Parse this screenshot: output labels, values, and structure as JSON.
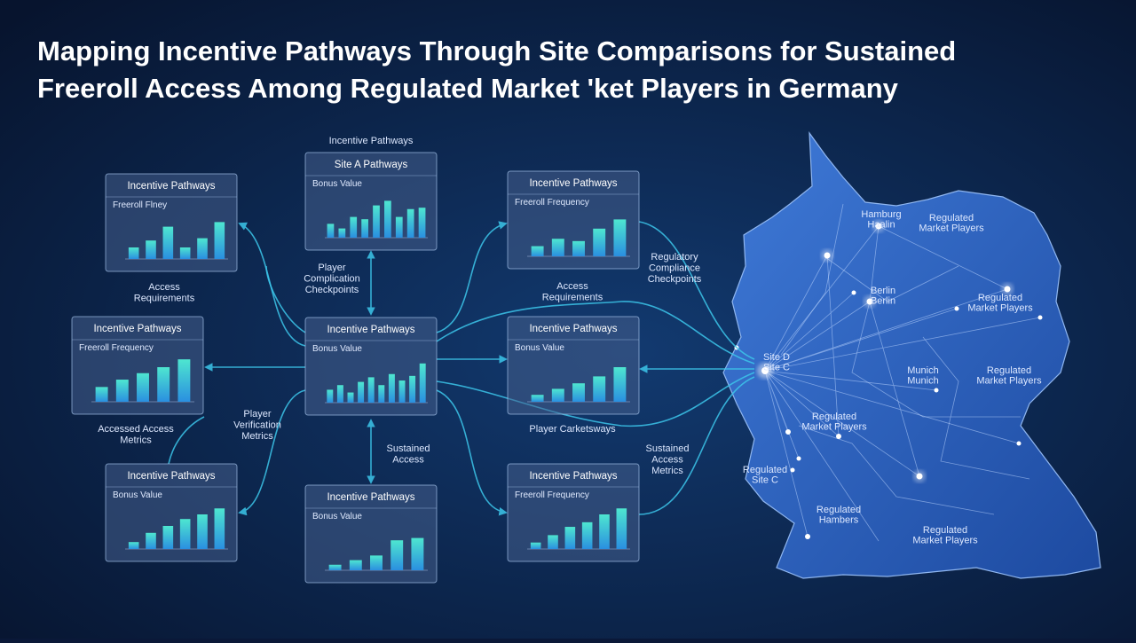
{
  "title": {
    "lines": [
      "Mapping Incentive Pathways Through Site Comparisons for Sustained",
      "Freeroll Access Among Regulated Market 'ket Players in Germany"
    ]
  },
  "panels": [
    {
      "title": "Incentive Pathways",
      "subtitle": "Freeroll Flney",
      "ylim": [
        0,
        100
      ],
      "values": [
        25,
        40,
        70,
        25,
        45,
        80
      ]
    },
    {
      "title": "Site A Pathways",
      "subtitle": "Bonus Value",
      "ylim": [
        0,
        100
      ],
      "values": [
        30,
        20,
        45,
        40,
        70,
        80,
        45,
        62,
        65
      ]
    },
    {
      "title": "Incentive Pathways",
      "subtitle": "Freeroll Frequency",
      "ylim": [
        0,
        100
      ],
      "values": [
        22,
        38,
        33,
        60,
        80
      ]
    },
    {
      "title": "Incentive Pathways",
      "subtitle": "Freeroll Frequency",
      "ylim": [
        0,
        100
      ],
      "values": [
        32,
        48,
        62,
        75,
        92
      ]
    },
    {
      "title": "Incentive Pathways",
      "subtitle": "Bonus Value",
      "ylim": [
        0,
        100
      ],
      "values": [
        28,
        38,
        22,
        45,
        55,
        38,
        62,
        48,
        58,
        85
      ]
    },
    {
      "title": "Incentive Pathways",
      "subtitle": "Bonus Value",
      "ylim": [
        0,
        100
      ],
      "values": [
        15,
        28,
        40,
        55,
        75
      ]
    },
    {
      "title": "Incentive Pathways",
      "subtitle": "Bonus Value",
      "ylim": [
        0,
        100
      ],
      "values": [
        15,
        35,
        50,
        65,
        75,
        88
      ]
    },
    {
      "title": "Incentive Pathways",
      "subtitle": "Bonus Value",
      "ylim": [
        0,
        100
      ],
      "values": [
        12,
        22,
        32,
        65,
        70
      ]
    },
    {
      "title": "Incentive Pathways",
      "subtitle": "Freeroll Frequency",
      "ylim": [
        0,
        100
      ],
      "values": [
        14,
        30,
        48,
        58,
        75,
        88
      ]
    }
  ],
  "labels": [
    {
      "lines": [
        "Incentive Pathways"
      ]
    },
    {
      "lines": [
        "Player",
        "Complication",
        "Checkpoints"
      ]
    },
    {
      "lines": [
        "Access",
        "Requirements"
      ]
    },
    {
      "lines": [
        "Access",
        "Requirements"
      ]
    },
    {
      "lines": [
        "Regulatory",
        "Compliance",
        "Checkpoints"
      ]
    },
    {
      "lines": [
        "Player",
        "Verification",
        "Metrics"
      ]
    },
    {
      "lines": [
        "Accessed Access",
        "Metrics"
      ]
    },
    {
      "lines": [
        "Sustained",
        "Access"
      ]
    },
    {
      "lines": [
        "Player Carketsways"
      ]
    },
    {
      "lines": [
        "Sustained",
        "Access",
        "Metrics"
      ]
    }
  ],
  "map_labels": [
    {
      "lines": [
        "Hamburg",
        "Haalin"
      ]
    },
    {
      "lines": [
        "Regulated",
        "Market Players"
      ]
    },
    {
      "lines": [
        "Berlin",
        "Berlin"
      ]
    },
    {
      "lines": [
        "Regulated",
        "Market Players"
      ]
    },
    {
      "lines": [
        "Site D",
        "Site C"
      ]
    },
    {
      "lines": [
        "Munich",
        "Munich"
      ]
    },
    {
      "lines": [
        "Regulated",
        "Market Players"
      ]
    },
    {
      "lines": [
        "Regulated",
        "Market Players"
      ]
    },
    {
      "lines": [
        "Regulated",
        "Site C"
      ]
    },
    {
      "lines": [
        "Regulated",
        "Hambers"
      ]
    },
    {
      "lines": [
        "Regulated",
        "Market Players"
      ]
    }
  ]
}
